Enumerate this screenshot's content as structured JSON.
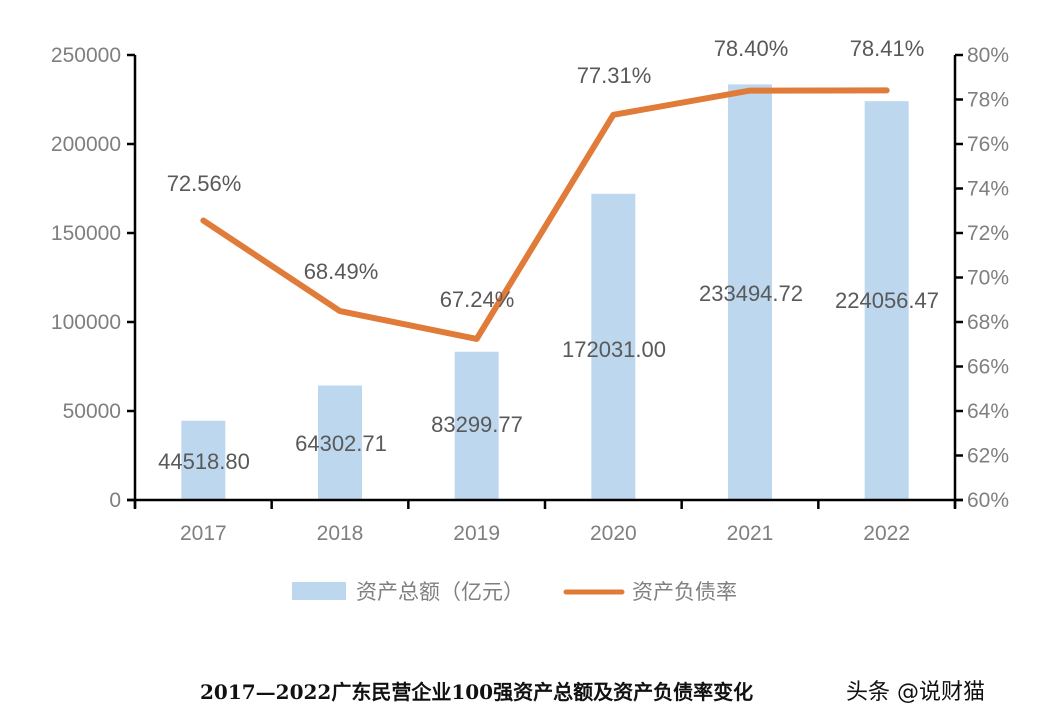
{
  "chart_data": {
    "type": "bar+line",
    "title": "",
    "categories": [
      "2017",
      "2018",
      "2019",
      "2020",
      "2021",
      "2022"
    ],
    "series": [
      {
        "name": "资产总额（亿元）",
        "type": "bar",
        "axis": "left",
        "color": "#bdd7ee",
        "values": [
          44518.8,
          64302.71,
          83299.77,
          172031.0,
          233494.72,
          224056.47
        ],
        "labels": [
          "44518.80",
          "64302.71",
          "83299.77",
          "172031.00",
          "233494.72",
          "224056.47"
        ]
      },
      {
        "name": "资产负债率",
        "type": "line",
        "axis": "right",
        "color": "#e07b39",
        "values": [
          72.56,
          68.49,
          67.24,
          77.31,
          78.4,
          78.41
        ],
        "labels": [
          "72.56%",
          "68.49%",
          "67.24%",
          "77.31%",
          "78.40%",
          "78.41%"
        ]
      }
    ],
    "left_axis": {
      "ylim": [
        0,
        250000
      ],
      "ticks": [
        "0",
        "50000",
        "100000",
        "150000",
        "200000",
        "250000"
      ]
    },
    "right_axis": {
      "ylim": [
        60,
        80
      ],
      "ticks": [
        "60%",
        "62%",
        "64%",
        "66%",
        "68%",
        "70%",
        "72%",
        "74%",
        "76%",
        "78%",
        "80%"
      ]
    },
    "xlabel": "",
    "ylabel": "",
    "grid": false,
    "legend_position": "bottom"
  },
  "legend": {
    "bar_label": "资产总额（亿元）",
    "line_label": "资产负债率"
  },
  "caption": "2017—2022广东民营企业100强资产总额及资产负债率变化",
  "watermark": "头条 @说财猫"
}
